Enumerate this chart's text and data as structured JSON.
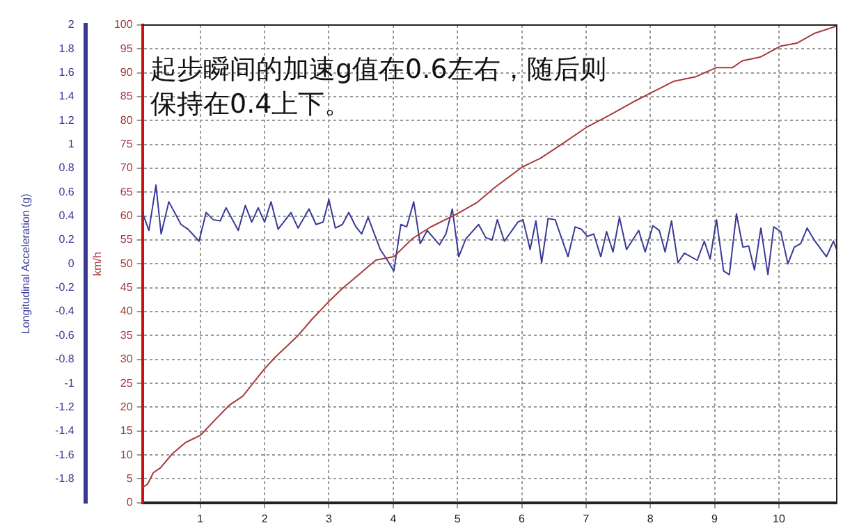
{
  "chart_data": {
    "type": "line",
    "annotations": [
      "起步瞬间的加速g值在0.6左右，随后则保持在0.4上下。"
    ],
    "xlim": [
      0.1,
      10.9
    ],
    "xticks": [
      1,
      2,
      3,
      4,
      5,
      6,
      7,
      8,
      9,
      10
    ],
    "ylabel": "km/h",
    "ylim": [
      0,
      100
    ],
    "yticks": [
      0,
      5,
      10,
      15,
      20,
      25,
      30,
      35,
      40,
      45,
      50,
      55,
      60,
      65,
      70,
      75,
      80,
      85,
      90,
      95,
      100
    ],
    "y2label": "Longitudinal Acceleration (g)",
    "y2lim": [
      -2,
      2
    ],
    "y2ticks": [
      -1.8,
      -1.6,
      -1.4,
      -1.2,
      -1,
      -0.8,
      -0.6,
      -0.4,
      -0.2,
      0,
      0.2,
      0.4,
      0.6,
      0.8,
      1,
      1.2,
      1.4,
      1.6,
      1.8,
      2
    ],
    "grid": true,
    "legend": false,
    "marker": "none",
    "line_style": "solid",
    "series": [
      {
        "color": "#a83a3a",
        "x": [
          0.1,
          0.18,
          0.27,
          0.38,
          0.56,
          0.77,
          1.0,
          1.24,
          1.45,
          1.66,
          1.99,
          2.16,
          2.52,
          2.73,
          2.99,
          3.23,
          3.48,
          3.73,
          4.01,
          4.3,
          4.58,
          5.01,
          5.3,
          5.58,
          6.01,
          6.29,
          6.65,
          7.02,
          7.36,
          7.72,
          8.04,
          8.36,
          8.71,
          9.03,
          9.28,
          9.43,
          9.71,
          10.03,
          10.28,
          10.56,
          10.9
        ],
        "values": [
          3.2,
          3.9,
          6.3,
          7.3,
          10.2,
          12.6,
          14.1,
          17.5,
          20.4,
          22.3,
          27.9,
          30.4,
          35.0,
          38.3,
          42.0,
          45.1,
          47.9,
          50.8,
          51.5,
          55.3,
          57.7,
          60.6,
          62.8,
          66.0,
          70.3,
          72.1,
          75.3,
          78.7,
          81.1,
          83.8,
          86.0,
          88.2,
          89.2,
          91.1,
          91.1,
          92.5,
          93.3,
          95.6,
          96.2,
          98.3,
          99.8
        ]
      },
      {
        "axis": "y2",
        "color": "#3a3a96",
        "x": [
          0.1,
          0.2,
          0.31,
          0.39,
          0.51,
          0.7,
          0.81,
          0.98,
          1.09,
          1.2,
          1.31,
          1.4,
          1.59,
          1.7,
          1.8,
          1.9,
          2.0,
          2.1,
          2.21,
          2.41,
          2.52,
          2.69,
          2.8,
          2.91,
          3.0,
          3.1,
          3.21,
          3.31,
          3.42,
          3.51,
          3.61,
          3.8,
          3.91,
          4.01,
          4.12,
          4.21,
          4.32,
          4.42,
          4.53,
          4.72,
          4.82,
          4.92,
          5.02,
          5.13,
          5.33,
          5.44,
          5.54,
          5.62,
          5.73,
          5.94,
          6.02,
          6.13,
          6.22,
          6.31,
          6.41,
          6.52,
          6.72,
          6.83,
          6.93,
          7.02,
          7.12,
          7.23,
          7.32,
          7.42,
          7.52,
          7.63,
          7.82,
          7.92,
          8.04,
          8.14,
          8.23,
          8.33,
          8.43,
          8.53,
          8.73,
          8.84,
          8.93,
          9.03,
          9.14,
          9.23,
          9.34,
          9.44,
          9.53,
          9.62,
          9.72,
          9.83,
          9.92,
          10.03,
          10.14,
          10.24,
          10.34,
          10.44,
          10.55,
          10.74,
          10.85,
          10.9
        ],
        "values": [
          0.43,
          0.28,
          0.66,
          0.25,
          0.52,
          0.33,
          0.29,
          0.19,
          0.43,
          0.37,
          0.36,
          0.47,
          0.28,
          0.49,
          0.35,
          0.47,
          0.35,
          0.52,
          0.29,
          0.43,
          0.3,
          0.46,
          0.33,
          0.35,
          0.54,
          0.3,
          0.33,
          0.43,
          0.31,
          0.25,
          0.39,
          0.12,
          0.03,
          -0.06,
          0.33,
          0.31,
          0.52,
          0.17,
          0.28,
          0.16,
          0.25,
          0.46,
          0.06,
          0.21,
          0.33,
          0.22,
          0.2,
          0.37,
          0.19,
          0.35,
          0.37,
          0.12,
          0.36,
          0.01,
          0.38,
          0.37,
          0.06,
          0.31,
          0.29,
          0.23,
          0.25,
          0.06,
          0.27,
          0.1,
          0.39,
          0.12,
          0.28,
          0.1,
          0.32,
          0.28,
          0.1,
          0.36,
          0.01,
          0.09,
          0.03,
          0.19,
          0.04,
          0.37,
          -0.06,
          -0.09,
          0.42,
          0.14,
          0.15,
          -0.05,
          0.3,
          -0.09,
          0.31,
          0.27,
          0.0,
          0.14,
          0.17,
          0.3,
          0.2,
          0.06,
          0.19,
          0.12
        ]
      }
    ]
  }
}
